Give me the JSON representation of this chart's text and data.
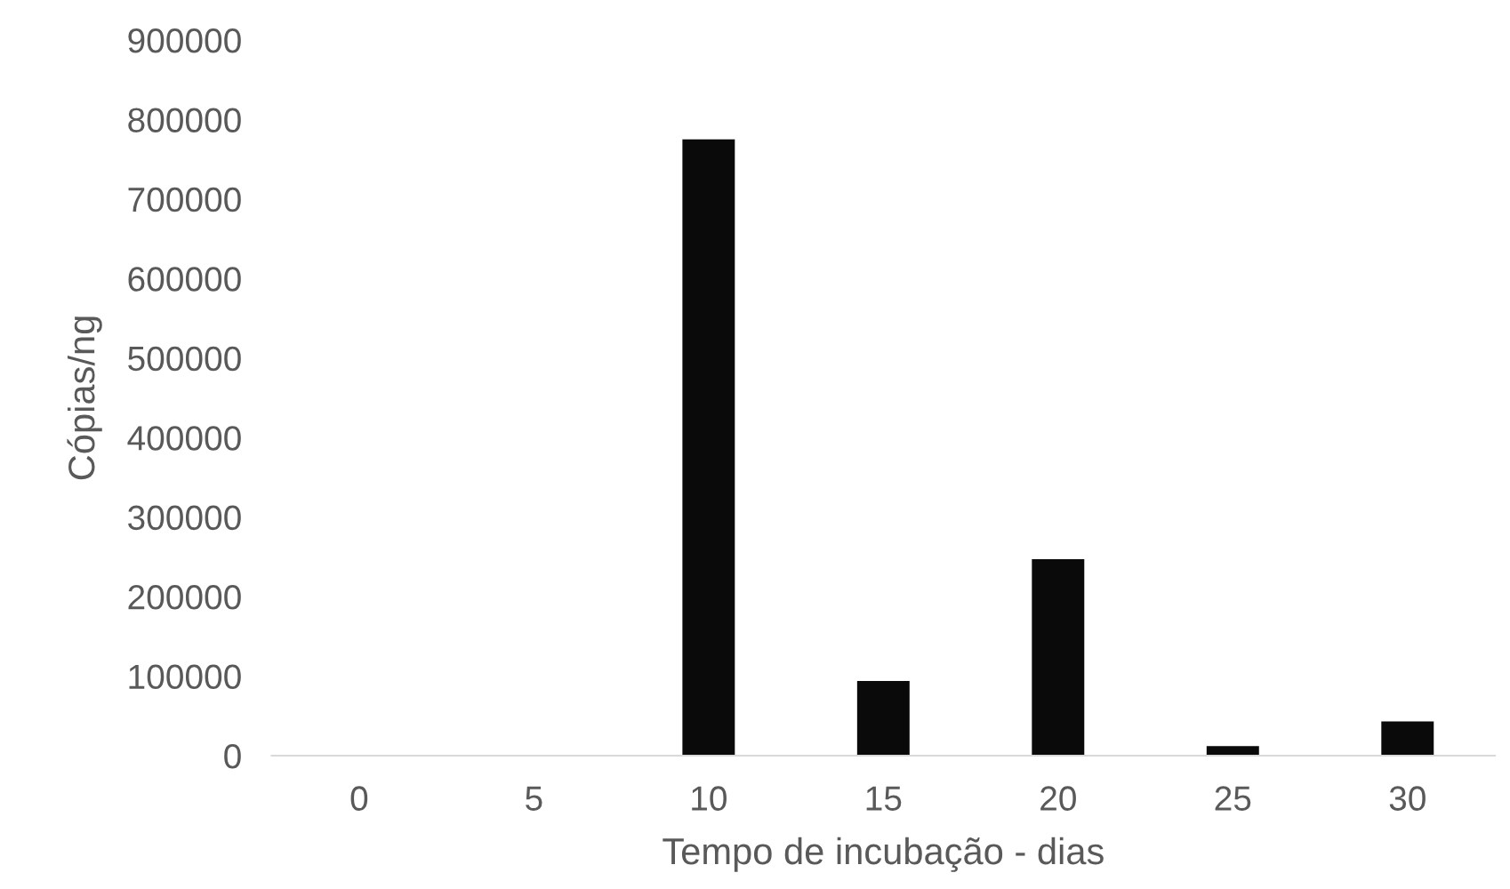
{
  "chart_data": {
    "type": "bar",
    "xlabel": "Tempo de incubação - dias",
    "ylabel": "Cópias/ng",
    "categories": [
      "0",
      "5",
      "10",
      "15",
      "20",
      "25",
      "30"
    ],
    "values": [
      0,
      0,
      775000,
      94000,
      247000,
      12000,
      43000
    ],
    "color": "#0a0a0a",
    "ylim": [
      0,
      900000
    ],
    "yticks": [
      0,
      100000,
      200000,
      300000,
      400000,
      500000,
      600000,
      700000,
      800000,
      900000
    ],
    "grid": false,
    "legend": false
  }
}
